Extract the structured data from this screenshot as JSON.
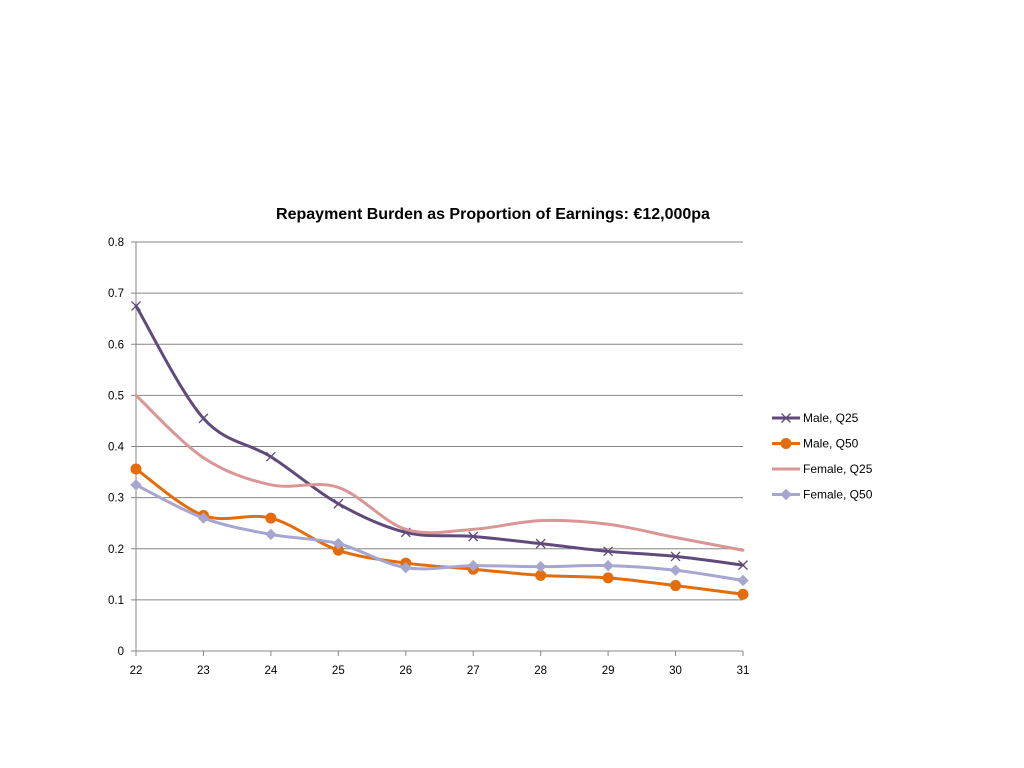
{
  "chart_data": {
    "type": "line",
    "title": "Repayment Burden as Proportion of Earnings: €12,000pa",
    "xlabel": "",
    "ylabel": "",
    "x": [
      22,
      23,
      24,
      25,
      26,
      27,
      28,
      29,
      30,
      31
    ],
    "xlim": [
      22,
      31
    ],
    "ylim": [
      0,
      0.8
    ],
    "yticks": [
      "0",
      "0.1",
      "0.2",
      "0.3",
      "0.4",
      "0.5",
      "0.6",
      "0.7",
      "0.8"
    ],
    "grid": "horizontal",
    "legend_position": "right",
    "smooth": true,
    "series": [
      {
        "name": "Male, Q25",
        "color": "#604A7B",
        "marker": "x",
        "values": [
          0.675,
          0.455,
          0.38,
          0.288,
          0.232,
          0.224,
          0.21,
          0.195,
          0.185,
          0.168
        ]
      },
      {
        "name": "Male, Q50",
        "color": "#E46C0A",
        "marker": "circle",
        "values": [
          0.356,
          0.265,
          0.26,
          0.197,
          0.172,
          0.16,
          0.148,
          0.143,
          0.128,
          0.111
        ]
      },
      {
        "name": "Female, Q25",
        "color": "#D99694",
        "marker": "none",
        "values": [
          0.5,
          0.378,
          0.325,
          0.32,
          0.238,
          0.238,
          0.255,
          0.248,
          0.222,
          0.197
        ]
      },
      {
        "name": "Female, Q50",
        "color": "#A6A6D0",
        "marker": "diamond",
        "values": [
          0.325,
          0.26,
          0.228,
          0.21,
          0.163,
          0.167,
          0.165,
          0.167,
          0.158,
          0.138
        ]
      }
    ]
  }
}
